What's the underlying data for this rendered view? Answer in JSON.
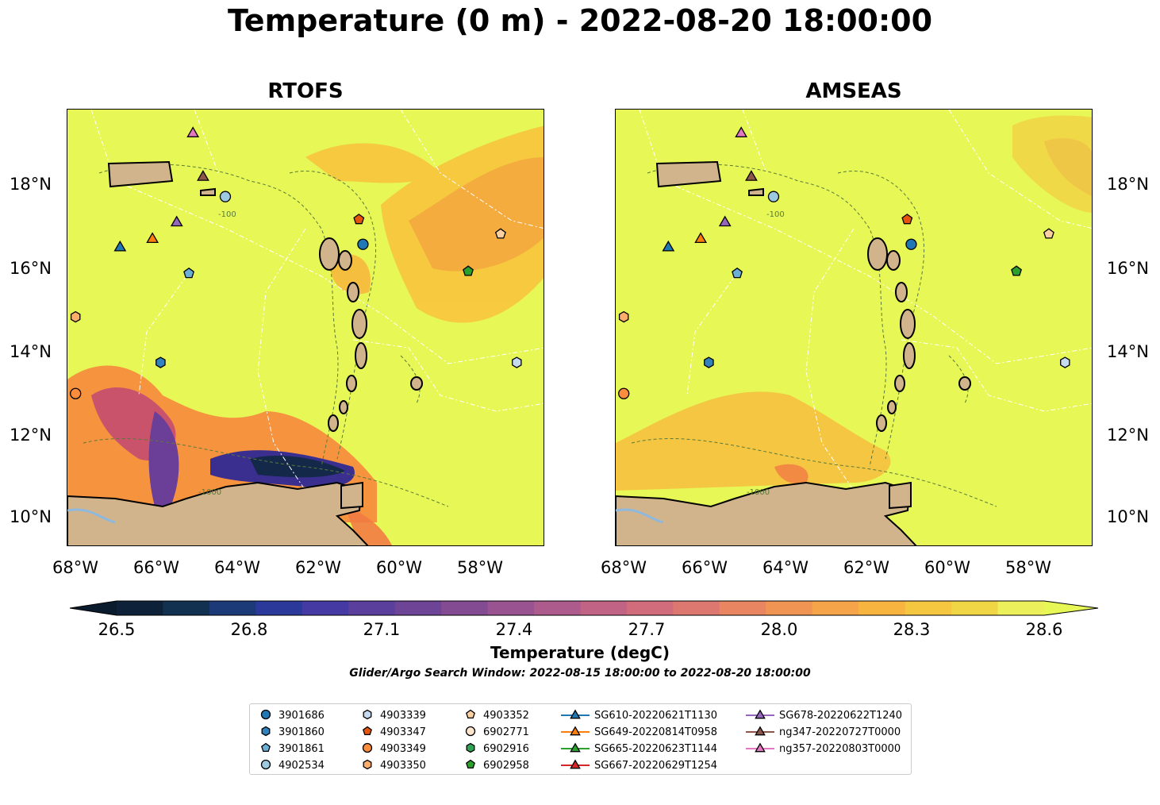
{
  "title": "Temperature (0 m) - 2022-08-20 18:00:00",
  "panels": [
    {
      "title": "RTOFS"
    },
    {
      "title": "AMSEAS"
    }
  ],
  "lon_ticks": [
    "68°W",
    "66°W",
    "64°W",
    "62°W",
    "60°W",
    "58°W"
  ],
  "lat_ticks": [
    "18°N",
    "16°N",
    "14°N",
    "12°N",
    "10°N"
  ],
  "contour_labels": [
    "-100",
    "-1000"
  ],
  "colorbar": {
    "ticks": [
      "26.5",
      "26.8",
      "27.1",
      "27.4",
      "27.7",
      "28.0",
      "28.3",
      "28.6"
    ],
    "label": "Temperature (degC)",
    "min": 26.5,
    "max": 28.6,
    "colormap": "thermal"
  },
  "search_window": "Glider/Argo Search Window: 2022-08-15 18:00:00 to 2022-08-20 18:00:00",
  "colors": {
    "ocean_warm": "#e6f756",
    "land": "#d2b48c",
    "blue": "#1f77b4",
    "orange": "#ff7f0e",
    "green": "#2ca02c",
    "red": "#d62728",
    "purple": "#9467bd",
    "brown": "#8c564b",
    "pink": "#e377c2",
    "light_blue": "#6baed6",
    "sky": "#9ecae1",
    "pale_blue": "#c6dbef",
    "peach": "#fdd0a2",
    "light_orange": "#fdae6b",
    "dark_orange": "#fd8d3c"
  },
  "legend": [
    {
      "label": "3901686",
      "marker": "circle",
      "color": "#1f77b4"
    },
    {
      "label": "3901860",
      "marker": "hexagon",
      "color": "#3182bd"
    },
    {
      "label": "3901861",
      "marker": "pentagon",
      "color": "#6baed6"
    },
    {
      "label": "4902534",
      "marker": "circle",
      "color": "#9ecae1"
    },
    {
      "label": "4903339",
      "marker": "hexagon",
      "color": "#c6dbef"
    },
    {
      "label": "4903347",
      "marker": "pentagon",
      "color": "#e6550d"
    },
    {
      "label": "4903349",
      "marker": "circle",
      "color": "#fd8d3c"
    },
    {
      "label": "4903350",
      "marker": "hexagon",
      "color": "#fdae6b"
    },
    {
      "label": "4903352",
      "marker": "pentagon",
      "color": "#fdd0a2"
    },
    {
      "label": "6902771",
      "marker": "circle",
      "color": "#fee6ce"
    },
    {
      "label": "6902916",
      "marker": "hexagon",
      "color": "#31a354"
    },
    {
      "label": "6902958",
      "marker": "pentagon",
      "color": "#2ca02c"
    },
    {
      "label": "SG610-20220621T1130",
      "marker": "triangle",
      "color": "#1f77b4"
    },
    {
      "label": "SG649-20220814T0958",
      "marker": "triangle",
      "color": "#ff7f0e"
    },
    {
      "label": "SG665-20220623T1144",
      "marker": "triangle",
      "color": "#2ca02c"
    },
    {
      "label": "SG667-20220629T1254",
      "marker": "triangle",
      "color": "#d62728"
    },
    {
      "label": "SG678-20220622T1240",
      "marker": "triangle",
      "color": "#9467bd"
    },
    {
      "label": "ng347-20220727T0000",
      "marker": "triangle",
      "color": "#8c564b"
    },
    {
      "label": "ng357-20220803T0000",
      "marker": "triangle",
      "color": "#e377c2"
    }
  ],
  "markers": [
    {
      "id": "3901686",
      "lon": -60.9,
      "lat": 16.55
    },
    {
      "id": "3901860",
      "lon": -65.9,
      "lat": 13.7
    },
    {
      "id": "3901861",
      "lon": -65.2,
      "lat": 15.85
    },
    {
      "id": "4902534",
      "lon": -64.3,
      "lat": 17.7
    },
    {
      "id": "4903339",
      "lon": -57.1,
      "lat": 13.7
    },
    {
      "id": "4903347",
      "lon": -61.0,
      "lat": 17.15
    },
    {
      "id": "4903349",
      "lon": -68.0,
      "lat": 12.95
    },
    {
      "id": "4903350",
      "lon": -68.0,
      "lat": 14.8
    },
    {
      "id": "4903352",
      "lon": -57.5,
      "lat": 16.8
    },
    {
      "id": "6902958",
      "lon": -58.3,
      "lat": 15.9
    },
    {
      "id": "SG610-20220621T1130",
      "lon": -66.9,
      "lat": 16.5
    },
    {
      "id": "SG649-20220814T0958",
      "lon": -66.1,
      "lat": 16.7
    },
    {
      "id": "SG678-20220622T1240",
      "lon": -65.5,
      "lat": 17.1
    },
    {
      "id": "ng347-20220727T0000",
      "lon": -64.85,
      "lat": 18.2
    },
    {
      "id": "ng357-20220803T0000",
      "lon": -65.1,
      "lat": 19.25
    }
  ],
  "map_extent": {
    "lon": [
      -68.2,
      -56.4
    ],
    "lat": [
      9.25,
      19.8
    ]
  }
}
